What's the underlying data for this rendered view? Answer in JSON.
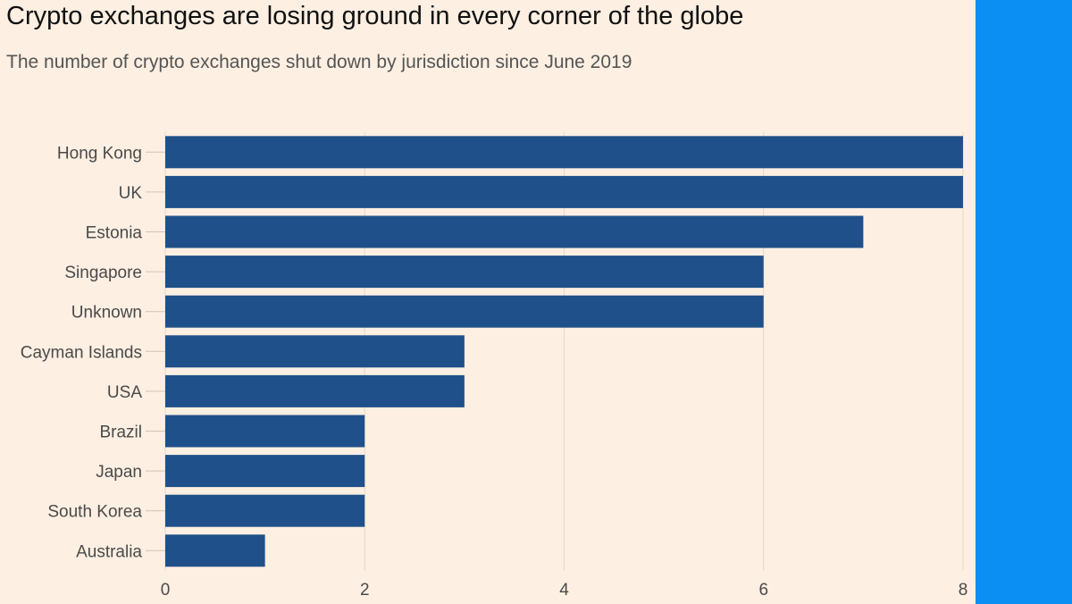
{
  "colors": {
    "background": "#fdefe2",
    "bar": "#1f5089",
    "side_panel": "#0b8ff2",
    "gridline": "#e4d8cc",
    "tick": "#cfc3b8"
  },
  "chart_data": {
    "type": "bar",
    "orientation": "horizontal",
    "title": "Crypto exchanges are losing ground in every corner of the globe",
    "subtitle": "The number of crypto exchanges shut down by jurisdiction since June 2019",
    "categories": [
      "Hong Kong",
      "UK",
      "Estonia",
      "Singapore",
      "Unknown",
      "Cayman Islands",
      "USA",
      "Brazil",
      "Japan",
      "South Korea",
      "Australia"
    ],
    "values": [
      8,
      8,
      7,
      6,
      6,
      3,
      3,
      2,
      2,
      2,
      1
    ],
    "xlim": [
      0,
      8
    ],
    "xticks": [
      "0",
      "2",
      "4",
      "6",
      "8"
    ],
    "grid": true,
    "xlabel": "",
    "ylabel": ""
  }
}
